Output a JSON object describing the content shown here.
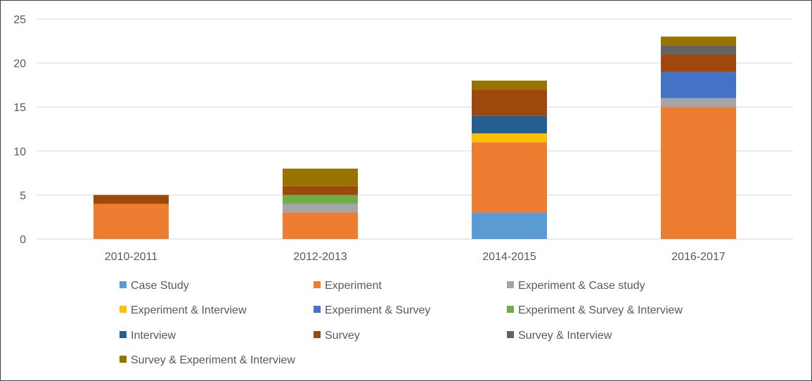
{
  "chart_data": {
    "type": "bar",
    "stacked": true,
    "categories": [
      "2010-2011",
      "2012-2013",
      "2014-2015",
      "2016-2017"
    ],
    "ylim": [
      0,
      25
    ],
    "yticks": [
      0,
      5,
      10,
      15,
      20,
      25
    ],
    "grid": true,
    "legend_position": "bottom",
    "title": "",
    "xlabel": "",
    "ylabel": "",
    "series": [
      {
        "name": "Case Study",
        "color": "#5B9BD5",
        "values": [
          0,
          0,
          3,
          0
        ]
      },
      {
        "name": "Experiment",
        "color": "#ED7D31",
        "values": [
          4,
          3,
          8,
          15
        ]
      },
      {
        "name": "Experiment & Case study",
        "color": "#A5A5A5",
        "values": [
          0,
          1,
          0,
          1
        ]
      },
      {
        "name": "Experiment & Interview",
        "color": "#FFC000",
        "values": [
          0,
          0,
          1,
          0
        ]
      },
      {
        "name": "Experiment & Survey",
        "color": "#4472C4",
        "values": [
          0,
          0,
          0,
          3
        ]
      },
      {
        "name": "Experiment & Survey & Interview",
        "color": "#70AD47",
        "values": [
          0,
          1,
          0,
          0
        ]
      },
      {
        "name": "Interview",
        "color": "#255E91",
        "values": [
          0,
          0,
          2,
          0
        ]
      },
      {
        "name": "Survey",
        "color": "#9E480E",
        "values": [
          1,
          1,
          3,
          2
        ]
      },
      {
        "name": "Survey & Interview",
        "color": "#636363",
        "values": [
          0,
          0,
          0,
          1
        ]
      },
      {
        "name": "Survey & Experiment & Interview",
        "color": "#997300",
        "values": [
          0,
          2,
          1,
          1
        ]
      }
    ]
  }
}
